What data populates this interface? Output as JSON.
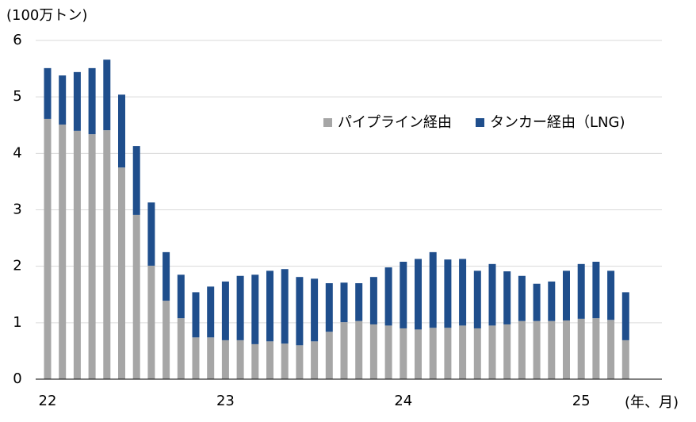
{
  "chart_data": {
    "type": "stacked_bar",
    "y_label": "(100万トン)",
    "x_label": "(年、月)",
    "categories": [
      "22",
      null,
      null,
      null,
      null,
      null,
      null,
      null,
      null,
      null,
      null,
      null,
      "23",
      null,
      null,
      null,
      null,
      null,
      null,
      null,
      null,
      null,
      null,
      null,
      "24",
      null,
      null,
      null,
      null,
      null,
      null,
      null,
      null,
      null,
      null,
      null,
      "25",
      null,
      null,
      null
    ],
    "series": [
      {
        "name": "パイプライン経由",
        "color": "#a6a6a6",
        "values": [
          4.61,
          4.51,
          4.4,
          4.34,
          4.41,
          3.75,
          2.91,
          2.01,
          1.39,
          1.08,
          0.74,
          0.74,
          0.69,
          0.69,
          0.62,
          0.67,
          0.63,
          0.6,
          0.67,
          0.84,
          1.01,
          1.03,
          0.97,
          0.95,
          0.9,
          0.88,
          0.91,
          0.91,
          0.95,
          0.9,
          0.95,
          0.97,
          1.03,
          1.03,
          1.03,
          1.04,
          1.07,
          1.08,
          1.05,
          0.69
        ]
      },
      {
        "name": "タンカー経由（LNG)",
        "color": "#1f4e8c",
        "values": [
          0.9,
          0.87,
          1.04,
          1.17,
          1.25,
          1.29,
          1.22,
          1.12,
          0.86,
          0.77,
          0.8,
          0.9,
          1.04,
          1.14,
          1.23,
          1.25,
          1.32,
          1.21,
          1.11,
          0.86,
          0.7,
          0.67,
          0.84,
          1.03,
          1.18,
          1.25,
          1.34,
          1.21,
          1.18,
          1.02,
          1.09,
          0.94,
          0.8,
          0.66,
          0.7,
          0.88,
          0.97,
          1.0,
          0.87,
          0.85
        ]
      }
    ],
    "ylim": [
      0,
      6
    ],
    "yticks": [
      0,
      1,
      2,
      3,
      4,
      5,
      6
    ],
    "grid": true
  }
}
